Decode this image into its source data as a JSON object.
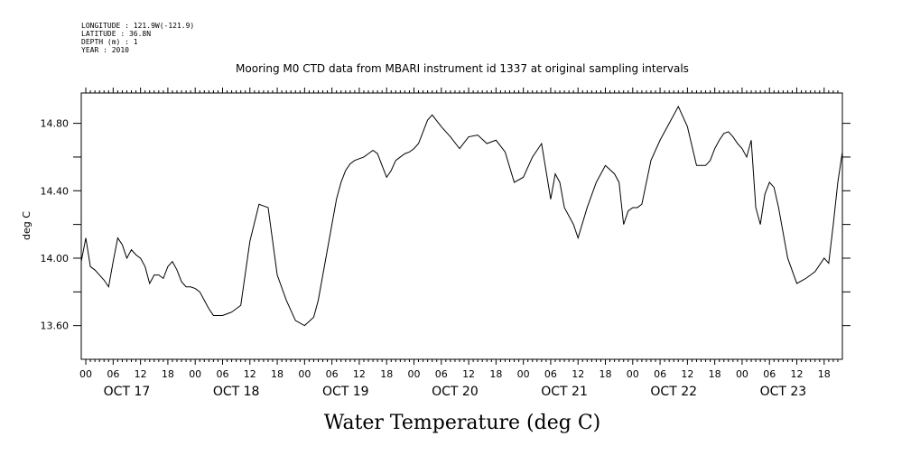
{
  "header": {
    "longitude": "LONGITUDE : 121.9W(-121.9)",
    "latitude": "LATITUDE : 36.8N",
    "depth": "DEPTH (m) : 1",
    "year": "YEAR : 2010"
  },
  "chart_data": {
    "type": "line",
    "title": "Mooring M0 CTD data from MBARI instrument id 1337 at original sampling intervals",
    "ylabel": "deg C",
    "xlabel": "Water Temperature (deg C)",
    "xlim_hours": [
      -1,
      166
    ],
    "ylim": [
      13.4,
      14.98
    ],
    "yticks": [
      13.6,
      13.8,
      14.0,
      14.2,
      14.4,
      14.6,
      14.8
    ],
    "ytick_labels": [
      "13.60",
      "",
      "14.00",
      "",
      "14.40",
      "",
      "14.80"
    ],
    "hour_tick_labels": [
      "00",
      "06",
      "12",
      "18"
    ],
    "days": [
      "OCT 17",
      "OCT 18",
      "OCT 19",
      "OCT 20",
      "OCT 21",
      "OCT 22",
      "OCT 23"
    ],
    "series": [
      {
        "x_hours": [
          -1,
          0,
          1,
          2,
          3,
          4,
          5,
          6,
          7,
          8,
          9,
          10,
          11,
          12,
          13,
          14,
          15,
          16,
          17,
          18,
          19,
          20,
          21,
          22,
          23,
          24,
          25,
          26,
          27,
          28,
          30,
          32,
          34,
          36,
          38,
          40,
          42,
          44,
          46,
          48,
          50,
          51,
          52,
          53,
          54,
          55,
          56,
          57,
          58,
          59,
          60,
          61,
          62,
          63,
          64,
          65,
          66,
          67,
          68,
          69,
          70,
          71,
          72,
          73,
          74,
          75,
          76,
          78,
          80,
          82,
          84,
          86,
          88,
          90,
          92,
          94,
          96,
          98,
          100,
          102,
          103,
          104,
          105,
          106,
          107,
          108,
          110,
          112,
          114,
          116,
          117,
          118,
          119,
          120,
          121,
          122,
          124,
          126,
          128,
          130,
          132,
          134,
          136,
          137,
          138,
          139,
          140,
          141,
          142,
          143,
          144,
          145,
          146,
          147,
          148,
          149,
          150,
          151,
          152,
          154,
          156,
          158,
          160,
          162,
          163,
          164,
          165,
          166
        ],
        "y": [
          13.98,
          14.12,
          13.95,
          13.93,
          13.9,
          13.87,
          13.83,
          13.98,
          14.12,
          14.08,
          14.0,
          14.05,
          14.02,
          14.0,
          13.95,
          13.85,
          13.9,
          13.9,
          13.88,
          13.95,
          13.98,
          13.93,
          13.86,
          13.83,
          13.83,
          13.82,
          13.8,
          13.75,
          13.7,
          13.66,
          13.66,
          13.68,
          13.72,
          14.1,
          14.32,
          14.3,
          13.9,
          13.75,
          13.63,
          13.6,
          13.65,
          13.75,
          13.9,
          14.05,
          14.2,
          14.35,
          14.45,
          14.52,
          14.56,
          14.58,
          14.59,
          14.6,
          14.62,
          14.64,
          14.62,
          14.55,
          14.48,
          14.52,
          14.58,
          14.6,
          14.62,
          14.63,
          14.65,
          14.68,
          14.75,
          14.82,
          14.85,
          14.78,
          14.72,
          14.65,
          14.72,
          14.73,
          14.68,
          14.7,
          14.63,
          14.45,
          14.48,
          14.6,
          14.68,
          14.35,
          14.5,
          14.45,
          14.3,
          14.25,
          14.2,
          14.12,
          14.3,
          14.45,
          14.55,
          14.5,
          14.45,
          14.2,
          14.28,
          14.3,
          14.3,
          14.32,
          14.58,
          14.7,
          14.8,
          14.9,
          14.78,
          14.55,
          14.55,
          14.58,
          14.65,
          14.7,
          14.74,
          14.75,
          14.72,
          14.68,
          14.65,
          14.6,
          14.7,
          14.3,
          14.2,
          14.38,
          14.45,
          14.42,
          14.3,
          14.0,
          13.85,
          13.88,
          13.92,
          14.0,
          13.97,
          14.2,
          14.45,
          14.63
        ]
      }
    ]
  }
}
